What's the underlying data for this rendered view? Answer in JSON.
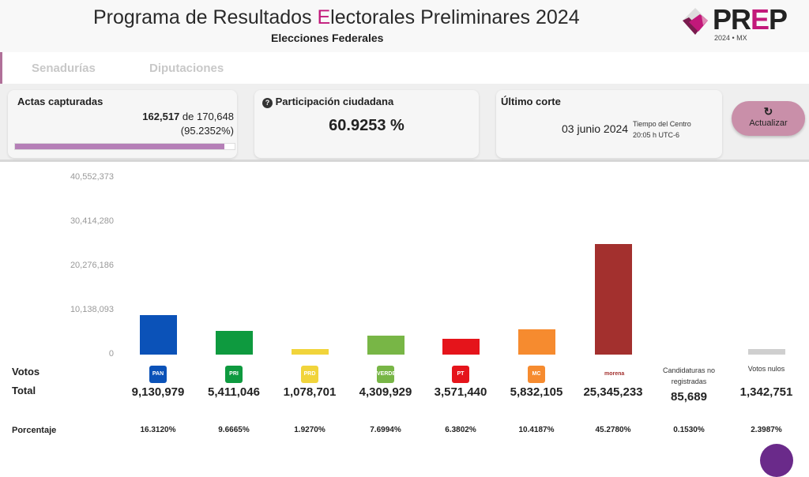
{
  "header": {
    "title_pre": "Programa de Resultados ",
    "title_e": "E",
    "title_post": "lectorales Preliminares 2024",
    "subtitle": "Elecciones Federales",
    "logo_pr": "PR",
    "logo_e": "E",
    "logo_p": "P",
    "logo_sub": "2024 • MX"
  },
  "tabs": [
    "Senadurías",
    "Diputaciones"
  ],
  "actas": {
    "label": "Actas capturadas",
    "captured": "162,517",
    "of": "de 170,648",
    "percent_text": "(95.2352%)",
    "progress": 95.2352
  },
  "participacion": {
    "label": "Participación ciudadana",
    "value": "60.9253 %"
  },
  "corte": {
    "label": "Último corte",
    "date": "03 junio 2024",
    "tz": "Tiempo del Centro",
    "time": "20:05 h UTC-6"
  },
  "refresh": {
    "label": "Actualizar"
  },
  "labels": {
    "votos": "Votos",
    "total": "Total",
    "porcentaje": "Porcentaje"
  },
  "chart_data": {
    "type": "bar",
    "ylim": [
      0,
      40552373
    ],
    "yticks": [
      "40,552,373",
      "30,414,280",
      "20,276,186",
      "10,138,093",
      "0"
    ],
    "ytick_values": [
      40552373,
      30414280,
      20276186,
      10138093,
      0
    ],
    "categories": [
      {
        "name": "PAN",
        "values": 9130979,
        "total": "9,130,979",
        "pct": "16.3120%",
        "color": "#0b52b8"
      },
      {
        "name": "PRI",
        "values": 5411046,
        "total": "5,411,046",
        "pct": "9.6665%",
        "color": "#0e9a3f"
      },
      {
        "name": "PRD",
        "values": 1078701,
        "total": "1,078,701",
        "pct": "1.9270%",
        "color": "#f1d43b"
      },
      {
        "name": "VERDE",
        "values": 4309929,
        "total": "4,309,929",
        "pct": "7.6994%",
        "color": "#78b646"
      },
      {
        "name": "PT",
        "values": 3571440,
        "total": "3,571,440",
        "pct": "6.3802%",
        "color": "#e5141b"
      },
      {
        "name": "MC",
        "values": 5832105,
        "total": "5,832,105",
        "pct": "10.4187%",
        "color": "#f68b2f"
      },
      {
        "name": "morena",
        "values": 25345233,
        "total": "25,345,233",
        "pct": "45.2780%",
        "color": "#a3302e"
      },
      {
        "name": "Candidaturas no registradas",
        "values": 85689,
        "total": "85,689",
        "pct": "0.1530%",
        "color": "#cccccc"
      },
      {
        "name": "Votos nulos",
        "values": 1342751,
        "total": "1,342,751",
        "pct": "2.3987%",
        "color": "#cfcfcf"
      }
    ]
  }
}
